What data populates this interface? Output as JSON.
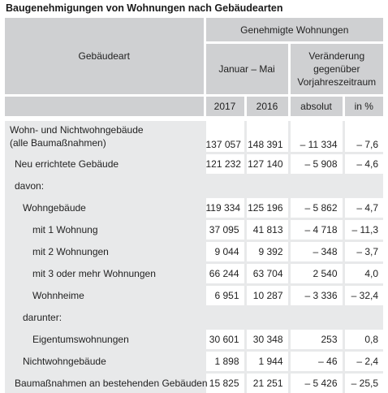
{
  "title": "Baugenehmigungen von Wohnungen nach Gebäudearten",
  "header": {
    "gebaeudeart": "Gebäudeart",
    "genehmigte": "Genehmigte Wohnungen",
    "januar_mai": "Januar – Mai",
    "veraenderung": "Veränderung gegenüber Vorjahreszeitraum",
    "y2017": "2017",
    "y2016": "2016",
    "absolut": "absolut",
    "in_pct": "in %"
  },
  "rows": [
    {
      "label1": "Wohn- und Nichtwohngebäude",
      "label2": "(alle Baumaßnahmen)",
      "v2017": "137 057",
      "v2016": "148 391",
      "abs": "– 11 334",
      "pct": "– 7,6"
    },
    {
      "label": "Neu errichtete Gebäude",
      "v2017": "121 232",
      "v2016": "127 140",
      "abs": "– 5 908",
      "pct": "– 4,6"
    },
    {
      "label": "davon:"
    },
    {
      "label": "Wohngebäude",
      "v2017": "119 334",
      "v2016": "125 196",
      "abs": "– 5 862",
      "pct": "– 4,7"
    },
    {
      "label": "mit 1 Wohnung",
      "v2017": "37 095",
      "v2016": "41 813",
      "abs": "– 4 718",
      "pct": "– 11,3"
    },
    {
      "label": "mit 2 Wohnungen",
      "v2017": "9 044",
      "v2016": "9 392",
      "abs": "– 348",
      "pct": "– 3,7"
    },
    {
      "label": "mit 3 oder mehr Wohnungen",
      "v2017": "66 244",
      "v2016": "63 704",
      "abs": "2 540",
      "pct": "4,0"
    },
    {
      "label": "Wohnheime",
      "v2017": "6 951",
      "v2016": "10 287",
      "abs": "– 3 336",
      "pct": "– 32,4"
    },
    {
      "label": "darunter:"
    },
    {
      "label": "Eigentumswohnungen",
      "v2017": "30 601",
      "v2016": "30 348",
      "abs": "253",
      "pct": "0,8"
    },
    {
      "label": "Nichtwohngebäude",
      "v2017": "1 898",
      "v2016": "1 944",
      "abs": "– 46",
      "pct": "– 2,4"
    },
    {
      "label": "Baumaßnahmen an bestehenden Gebäuden",
      "v2017": "15 825",
      "v2016": "21 251",
      "abs": "– 5 426",
      "pct": "– 25,5"
    }
  ]
}
